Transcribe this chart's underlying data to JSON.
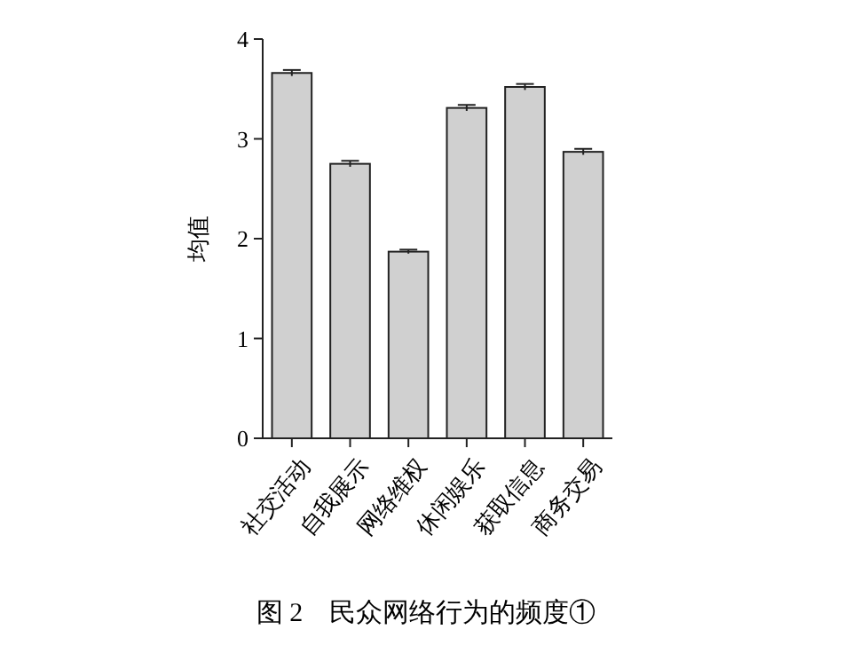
{
  "chart_data": {
    "type": "bar",
    "ylabel": "均值",
    "categories": [
      "社交活动",
      "自我展示",
      "网络维权",
      "休闲娱乐",
      "获取信息",
      "商务交易"
    ],
    "values": [
      3.66,
      2.75,
      1.87,
      3.31,
      3.52,
      2.87
    ],
    "errors": [
      0.03,
      0.03,
      0.02,
      0.03,
      0.03,
      0.03
    ],
    "color": "#d0d0d0",
    "ylim": [
      0,
      4
    ],
    "yticks": [
      0,
      1,
      2,
      3,
      4
    ],
    "annotations": [
      "图 2　民众网络行为的频度①"
    ]
  }
}
